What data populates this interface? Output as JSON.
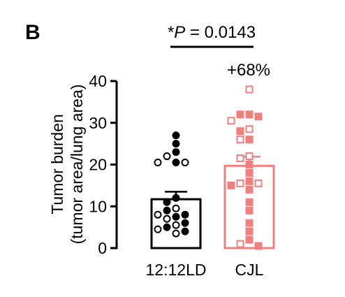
{
  "panel_label": "B",
  "colors": {
    "group1": "#000000",
    "group2": "#f08080"
  },
  "chart_data": {
    "type": "bar",
    "categories": [
      "12:12LD",
      "CJL"
    ],
    "ylabel_line1": "Tumor burden",
    "ylabel_line2": "(tumor area/lung area)",
    "ylim": [
      0,
      40
    ],
    "yticks": [
      0,
      10,
      20,
      30,
      40
    ],
    "grid": false,
    "series": [
      {
        "values": [
          11.7,
          19.7
        ],
        "sem": [
          1.8,
          2.2
        ]
      }
    ],
    "points": [
      {
        "category": "12:12LD",
        "filled": [
          27,
          25,
          23,
          20.5,
          12,
          11,
          9,
          8,
          7.5,
          6,
          5,
          4
        ],
        "open": [
          22,
          20.5,
          20.5,
          9.5,
          8,
          7,
          5.5,
          4.5,
          3.5
        ]
      },
      {
        "category": "CJL",
        "filled": [
          32,
          32,
          31.5,
          28,
          26,
          20,
          18,
          16,
          15,
          14,
          11,
          9,
          6,
          4,
          2,
          0.5
        ],
        "open": [
          38,
          30.5,
          28.5,
          26,
          22,
          21.5,
          15.5,
          15.5,
          1
        ]
      }
    ],
    "annotations": {
      "significance_prefix": "*",
      "significance_var": "P",
      "significance_rest": " = 0.0143",
      "percent_change": "+68%"
    }
  }
}
